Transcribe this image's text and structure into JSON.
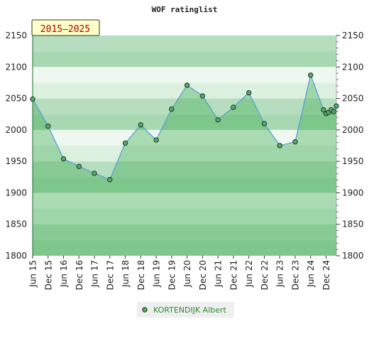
{
  "chart_data": {
    "type": "area",
    "title": "WOF ratinglist",
    "badge": "2015–2025",
    "xlabel": "",
    "ylabel": "",
    "ylim": [
      1800,
      2150
    ],
    "yticks": [
      1800,
      1850,
      1900,
      1950,
      2000,
      2050,
      2100,
      2150
    ],
    "xlim": [
      0,
      118
    ],
    "xtick_labels": [
      "Jun 15",
      "Dec 15",
      "Jun 16",
      "Dec 16",
      "Jun 17",
      "Dec 17",
      "Jun 18",
      "Dec 18",
      "Jun 19",
      "Dec 19",
      "Jun 20",
      "Dec 20",
      "Jun 21",
      "Dec 21",
      "Jun 22",
      "Dec 22",
      "Jun 23",
      "Dec 23",
      "Jun 24",
      "Dec 24"
    ],
    "legend": {
      "position": "bottom"
    },
    "grid": false,
    "series": [
      {
        "name": "KORTENDIJK Albert",
        "x": [
          0,
          6,
          12,
          18,
          24,
          30,
          36,
          42,
          48,
          54,
          60,
          66,
          72,
          78,
          84,
          90,
          96,
          102,
          108,
          113,
          114,
          115,
          116,
          117,
          118
        ],
        "values": [
          2049,
          2006,
          1954,
          1942,
          1931,
          1921,
          1979,
          2008,
          1984,
          2033,
          2071,
          2054,
          2016,
          2036,
          2059,
          2010,
          1975,
          1981,
          2087,
          2032,
          2026,
          2028,
          2032,
          2029,
          2038
        ]
      }
    ],
    "colors": {
      "line": "#5a9fd4",
      "area": "rgba(60,170,80,0.38)",
      "marker_fill": "#56a86a",
      "marker_stroke": "#1e3a24",
      "band_dark": "#aedcb8",
      "band_light": "#e6f5e9"
    }
  }
}
